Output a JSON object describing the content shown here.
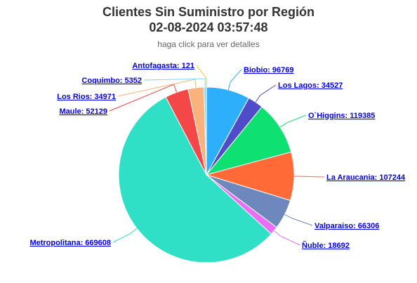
{
  "header": {
    "title_line1": "Clientes Sin Suministro por Región",
    "title_line2": "02-08-2024 03:57:48",
    "subtitle": "haga click para ver detalles"
  },
  "chart_data": {
    "type": "pie",
    "title": "Clientes Sin Suministro por Región",
    "subtitle": "haga click para ver detalles",
    "slices": [
      {
        "name": "Antofagasta",
        "value": 121,
        "color": "#f5c242",
        "label": "Antofagasta: 121"
      },
      {
        "name": "Biobio",
        "value": 96769,
        "color": "#2eaffc",
        "label": "Biobio: 96769"
      },
      {
        "name": "Los Lagos",
        "value": 34527,
        "color": "#4f4cc9",
        "label": "Los Lagos: 34527"
      },
      {
        "name": "O`Higgins",
        "value": 119385,
        "color": "#0ee072",
        "label": "O`Higgins: 119385"
      },
      {
        "name": "La Araucania",
        "value": 107244,
        "color": "#ff6a36",
        "label": "La Araucania: 107244"
      },
      {
        "name": "Valparaiso",
        "value": 66306,
        "color": "#6e88bd",
        "label": "Valparaiso: 66306"
      },
      {
        "name": "Ñuble",
        "value": 18692,
        "color": "#e96ef5",
        "label": "Ñuble: 18692"
      },
      {
        "name": "Metropolitana",
        "value": 669608,
        "color": "#2fe0c6",
        "label": "Metropolitana: 669608"
      },
      {
        "name": "Maule",
        "value": 52129,
        "color": "#f44747",
        "label": "Maule: 52129"
      },
      {
        "name": "Los Rios",
        "value": 34971,
        "color": "#f9b27c",
        "label": "Los Rios: 34971"
      },
      {
        "name": "Coquimbo",
        "value": 5352,
        "color": "#7fd8ee",
        "label": "Coquimbo: 5352"
      }
    ]
  }
}
